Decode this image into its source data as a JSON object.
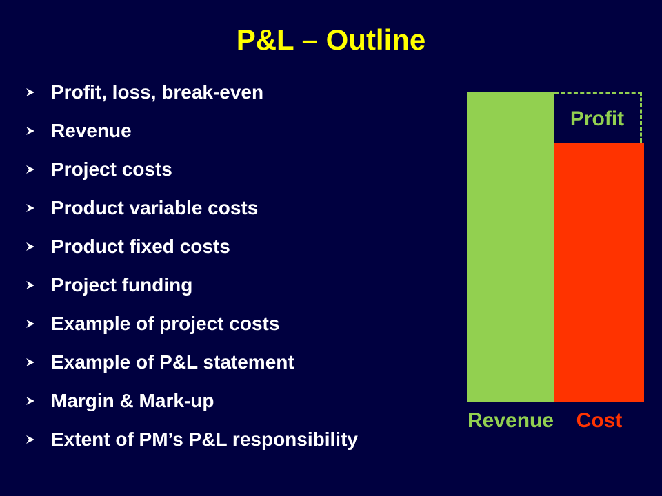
{
  "slide": {
    "title": "P&L – Outline",
    "bullets": [
      "Profit, loss, break-even",
      "Revenue",
      "Project costs",
      "Product variable costs",
      "Product fixed costs",
      "Project funding",
      "Example of project costs",
      "Example of P&L statement",
      "Margin & Mark-up",
      "Extent of PM’s P&L responsibility"
    ]
  },
  "diagram": {
    "revenue_label": "Revenue",
    "cost_label": "Cost",
    "profit_label": "Profit",
    "colors": {
      "background": "#000040",
      "title": "#ffff00",
      "revenue": "#92d050",
      "cost": "#ff3300",
      "profit_outline": "#92d050"
    }
  }
}
